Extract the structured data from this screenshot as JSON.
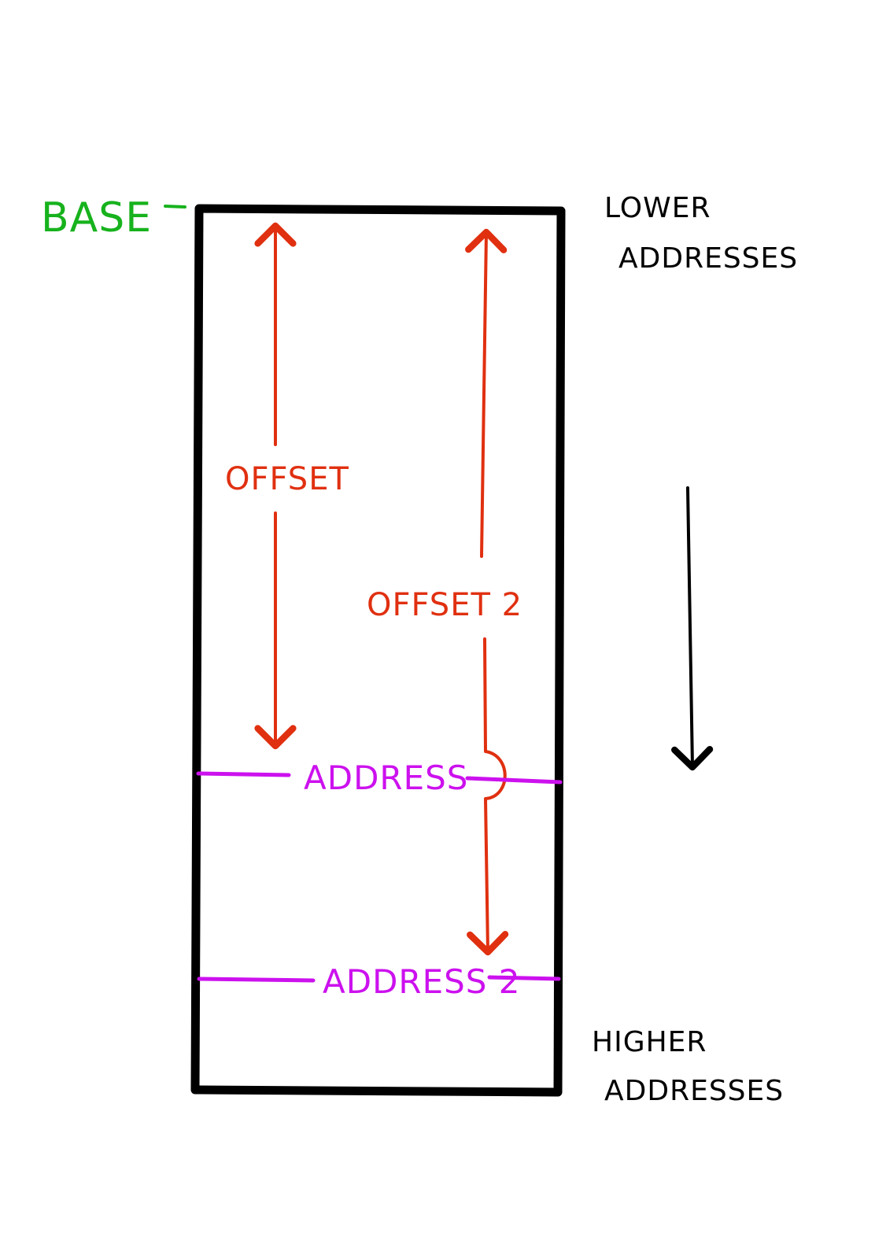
{
  "colors": {
    "background": "#ffffff",
    "box": "#000000",
    "base": "#17b21d",
    "offset": "#e03010",
    "address": "#cc11ee",
    "direction": "#000000"
  },
  "labels": {
    "base": "BASE",
    "lower_line1": "LOWER",
    "lower_line2": "ADDRESSES",
    "higher_line1": "HIGHER",
    "higher_line2": "ADDRESSES",
    "offset1": "OFFSET",
    "offset2": "OFFSET 2",
    "address1": "ADDRESS",
    "address2": "ADDRESS 2"
  }
}
